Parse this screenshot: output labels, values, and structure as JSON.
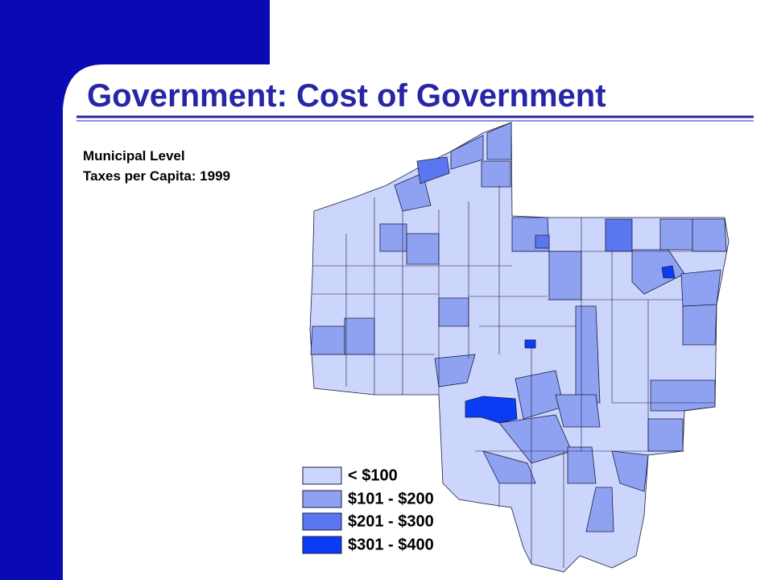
{
  "header": {
    "title": "Government:  Cost of Government",
    "subtitle": [
      "Municipal Level",
      "Taxes per Capita: 1999"
    ]
  },
  "legend": [
    {
      "label": "< $100",
      "color": "#ccd5fb"
    },
    {
      "label": "$101 - $200",
      "color": "#8fa2f2"
    },
    {
      "label": "$201 - $300",
      "color": "#5a77f0"
    },
    {
      "label": "$301 - $400",
      "color": "#0a3cf5"
    }
  ]
}
